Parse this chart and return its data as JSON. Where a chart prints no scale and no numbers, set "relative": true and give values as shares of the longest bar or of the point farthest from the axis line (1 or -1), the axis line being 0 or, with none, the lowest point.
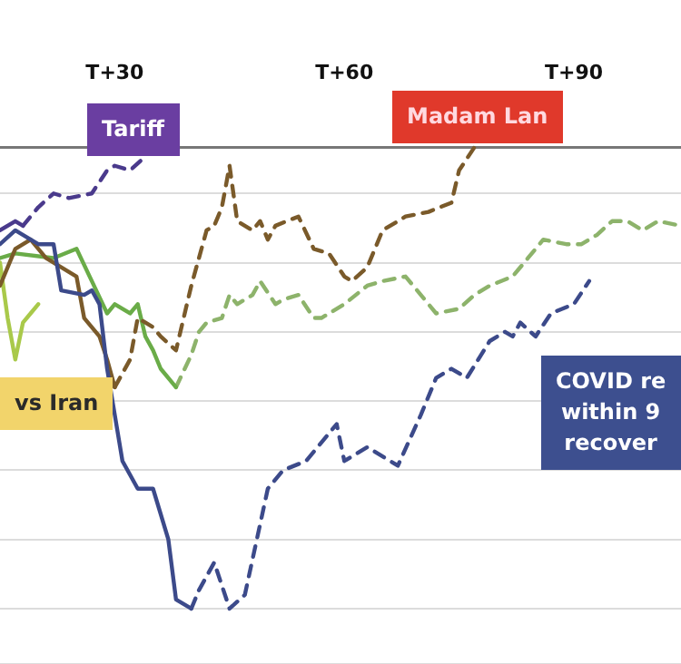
{
  "chart_data": {
    "type": "line",
    "relative": true,
    "tick_labels": "x",
    "grid": "y",
    "legend": false,
    "marker": "none",
    "categories": [
      null,
      null,
      null,
      null,
      null,
      null,
      null,
      null,
      null,
      null,
      null,
      null,
      null,
      null,
      null,
      "T+30",
      null,
      null,
      null,
      null,
      null,
      null,
      null,
      null,
      null,
      null,
      null,
      null,
      null,
      null,
      null,
      null,
      null,
      null,
      null,
      null,
      null,
      null,
      null,
      null,
      null,
      null,
      null,
      null,
      null,
      "T+60",
      null,
      null,
      null,
      null,
      null,
      null,
      null,
      null,
      null,
      null,
      null,
      null,
      null,
      null,
      null,
      null,
      null,
      null,
      null,
      null,
      null,
      null,
      null,
      null,
      null,
      null,
      null,
      null,
      null,
      "T+90",
      null,
      null,
      null,
      null,
      null,
      null,
      null,
      null,
      null,
      null,
      null,
      null,
      null,
      null
    ],
    "series": [
      {
        "color": "#3c4a8a",
        "line_style": "solid",
        "values": [
          0.79,
          null,
          0.82,
          null,
          null,
          0.79,
          null,
          0.79,
          0.69,
          null,
          null,
          0.68,
          0.69,
          0.66,
          0.52,
          null,
          0.32,
          null,
          0.26,
          null,
          0.26,
          null,
          0.15,
          0.02,
          null,
          0,
          null,
          null,
          null,
          null,
          null,
          null,
          null,
          null,
          null,
          null,
          null,
          null,
          null,
          null,
          null,
          null,
          null,
          null,
          null,
          null,
          null,
          null,
          null,
          null,
          null,
          null,
          null,
          null,
          null,
          null,
          null,
          null,
          null,
          null,
          null,
          null,
          null,
          null,
          null,
          null,
          null,
          null,
          null,
          null,
          null,
          null,
          null,
          null,
          null,
          null,
          null,
          null,
          null,
          null,
          null,
          null,
          null,
          null,
          null,
          null,
          null,
          null,
          null,
          null
        ]
      },
      {
        "color": "#3c4a8a",
        "line_style": "dashed",
        "values": [
          null,
          null,
          null,
          null,
          null,
          null,
          null,
          null,
          null,
          null,
          null,
          null,
          null,
          null,
          null,
          null,
          null,
          null,
          null,
          null,
          null,
          null,
          null,
          null,
          null,
          0,
          0.04,
          null,
          0.1,
          null,
          0,
          null,
          0.03,
          null,
          null,
          0.26,
          null,
          0.3,
          null,
          null,
          0.32,
          null,
          null,
          null,
          0.4,
          0.32,
          null,
          null,
          0.35,
          null,
          null,
          null,
          0.31,
          null,
          null,
          0.42,
          null,
          0.5,
          null,
          0.52,
          null,
          0.5,
          null,
          null,
          0.58,
          null,
          0.6,
          0.59,
          0.62,
          null,
          0.59,
          null,
          0.64,
          null,
          null,
          0.66,
          null,
          0.71,
          null,
          null,
          null,
          null,
          null,
          null,
          null,
          null,
          null,
          null,
          null,
          null
        ]
      },
      {
        "color": "#4a3a8c",
        "line_style": "solid",
        "values": [
          0.82,
          null,
          0.84,
          0.83,
          null,
          null,
          null,
          null,
          null,
          null,
          null,
          null,
          null,
          null,
          null,
          null,
          null,
          null,
          null,
          null,
          null,
          null,
          null,
          null,
          null,
          null,
          null,
          null,
          null,
          null,
          null,
          null,
          null,
          null,
          null,
          null,
          null,
          null,
          null,
          null,
          null,
          null,
          null,
          null,
          null,
          null,
          null,
          null,
          null,
          null,
          null,
          null,
          null,
          null,
          null,
          null,
          null,
          null,
          null,
          null,
          null,
          null,
          null,
          null,
          null,
          null,
          null,
          null,
          null,
          null,
          null,
          null,
          null,
          null,
          null,
          null,
          null,
          null,
          null,
          null,
          null,
          null,
          null,
          null,
          null,
          null,
          null,
          null,
          null,
          null
        ]
      },
      {
        "color": "#4a3a8c",
        "line_style": "dashed",
        "values": [
          null,
          null,
          null,
          0.83,
          null,
          0.87,
          null,
          0.9,
          null,
          0.89,
          null,
          null,
          0.9,
          null,
          0.95,
          0.96,
          null,
          0.95,
          null,
          0.98,
          null,
          null,
          null,
          null,
          null,
          null,
          null,
          null,
          null,
          null,
          null,
          null,
          null,
          null,
          null,
          null,
          null,
          null,
          null,
          null,
          null,
          null,
          null,
          null,
          null,
          null,
          null,
          null,
          null,
          null,
          null,
          null,
          null,
          null,
          null,
          null,
          null,
          null,
          null,
          null,
          null,
          null,
          null,
          null,
          null,
          null,
          null,
          null,
          null,
          null,
          null,
          null,
          null,
          null,
          null,
          null,
          null,
          null,
          null,
          null,
          null,
          null,
          null,
          null,
          null,
          null,
          null,
          null,
          null,
          null
        ]
      },
      {
        "color": "#7a5a2a",
        "line_style": "solid",
        "values": [
          0.7,
          null,
          0.78,
          null,
          0.8,
          null,
          0.76,
          null,
          0.74,
          null,
          0.72,
          0.63,
          null,
          0.59,
          0.54,
          0.48,
          null,
          null,
          null,
          null,
          null,
          null,
          null,
          null,
          null,
          null,
          null,
          null,
          null,
          null,
          null,
          null,
          null,
          null,
          null,
          null,
          null,
          null,
          null,
          null,
          null,
          null,
          null,
          null,
          null,
          null,
          null,
          null,
          null,
          null,
          null,
          null,
          null,
          null,
          null,
          null,
          null,
          null,
          null,
          null,
          null,
          null,
          null,
          null,
          null,
          null,
          null,
          null,
          null,
          null,
          null,
          null,
          null,
          null,
          null,
          null,
          null,
          null,
          null,
          null,
          null,
          null,
          null,
          null,
          null,
          null,
          null,
          null,
          null,
          null
        ]
      },
      {
        "color": "#7a5a2a",
        "line_style": "dashed",
        "values": [
          null,
          null,
          null,
          null,
          null,
          null,
          null,
          null,
          null,
          null,
          null,
          null,
          null,
          null,
          null,
          0.48,
          null,
          0.54,
          0.63,
          null,
          0.61,
          0.59,
          null,
          0.56,
          null,
          0.7,
          null,
          0.82,
          0.83,
          0.87,
          0.96,
          0.84,
          null,
          0.82,
          0.84,
          0.8,
          0.83,
          null,
          null,
          0.85,
          null,
          0.78,
          null,
          0.77,
          null,
          0.72,
          0.71,
          null,
          0.74,
          null,
          0.82,
          null,
          null,
          0.85,
          null,
          null,
          0.86,
          null,
          null,
          0.88,
          0.95,
          null,
          1.0,
          null,
          null,
          null,
          null,
          null,
          null,
          null,
          null,
          null,
          null,
          null,
          null,
          null,
          null,
          null,
          null,
          null,
          null,
          null,
          null,
          null,
          null,
          null,
          null,
          null,
          null,
          null
        ]
      },
      {
        "color": "#6aac48",
        "line_style": "solid",
        "values": [
          0.76,
          null,
          0.77,
          null,
          null,
          null,
          null,
          0.76,
          null,
          null,
          0.78,
          null,
          0.71,
          null,
          0.64,
          0.66,
          null,
          0.64,
          0.66,
          0.59,
          0.56,
          0.52,
          null,
          0.48,
          null,
          null,
          null,
          null,
          null,
          null,
          null,
          null,
          null,
          null,
          null,
          null,
          null,
          null,
          null,
          null,
          null,
          null,
          null,
          null,
          null,
          null,
          null,
          null,
          null,
          null,
          null,
          null,
          null,
          null,
          null,
          null,
          null,
          null,
          null,
          null,
          null,
          null,
          null,
          null,
          null,
          null,
          null,
          null,
          null,
          null,
          null,
          null,
          null,
          null,
          null,
          null,
          null,
          null,
          null,
          null,
          null,
          null,
          null,
          null,
          null,
          null,
          null,
          null,
          null,
          null
        ]
      },
      {
        "color": "#8db36b",
        "line_style": "dashed",
        "values": [
          null,
          null,
          null,
          null,
          null,
          null,
          null,
          null,
          null,
          null,
          null,
          null,
          null,
          null,
          null,
          null,
          null,
          null,
          null,
          null,
          null,
          null,
          null,
          0.48,
          null,
          0.55,
          0.6,
          0.62,
          null,
          0.63,
          0.68,
          0.66,
          null,
          0.68,
          0.71,
          null,
          0.66,
          0.67,
          null,
          0.68,
          null,
          0.63,
          0.63,
          null,
          null,
          0.66,
          null,
          null,
          0.7,
          null,
          0.71,
          null,
          null,
          0.72,
          null,
          0.68,
          null,
          0.64,
          null,
          null,
          0.65,
          null,
          0.68,
          null,
          0.7,
          null,
          null,
          0.72,
          null,
          0.76,
          null,
          0.8,
          null,
          null,
          0.79,
          null,
          0.79,
          null,
          0.81,
          null,
          0.84,
          null,
          0.84,
          null,
          0.82,
          null,
          0.84,
          null,
          null,
          0.83
        ]
      },
      {
        "color": "#a9c94a",
        "line_style": "solid",
        "values": [
          0.75,
          0.63,
          0.54,
          0.62,
          0.64,
          0.66,
          null,
          null,
          null,
          null,
          null,
          null,
          null,
          null,
          null,
          null,
          null,
          null,
          null,
          null,
          null,
          null,
          null,
          null,
          null,
          null,
          null,
          null,
          null,
          null,
          null,
          null,
          null,
          null,
          null,
          null,
          null,
          null,
          null,
          null,
          null,
          null,
          null,
          null,
          null,
          null,
          null,
          null,
          null,
          null,
          null,
          null,
          null,
          null,
          null,
          null,
          null,
          null,
          null,
          null,
          null,
          null,
          null,
          null,
          null,
          null,
          null,
          null,
          null,
          null,
          null,
          null,
          null,
          null,
          null,
          null,
          null,
          null,
          null,
          null,
          null,
          null,
          null,
          null,
          null,
          null,
          null,
          null,
          null,
          null
        ]
      }
    ],
    "annotations": [
      "Tariff",
      "Madam Lan",
      "vs Iran",
      "COVID re\nwithin 9\nrecover"
    ]
  }
}
